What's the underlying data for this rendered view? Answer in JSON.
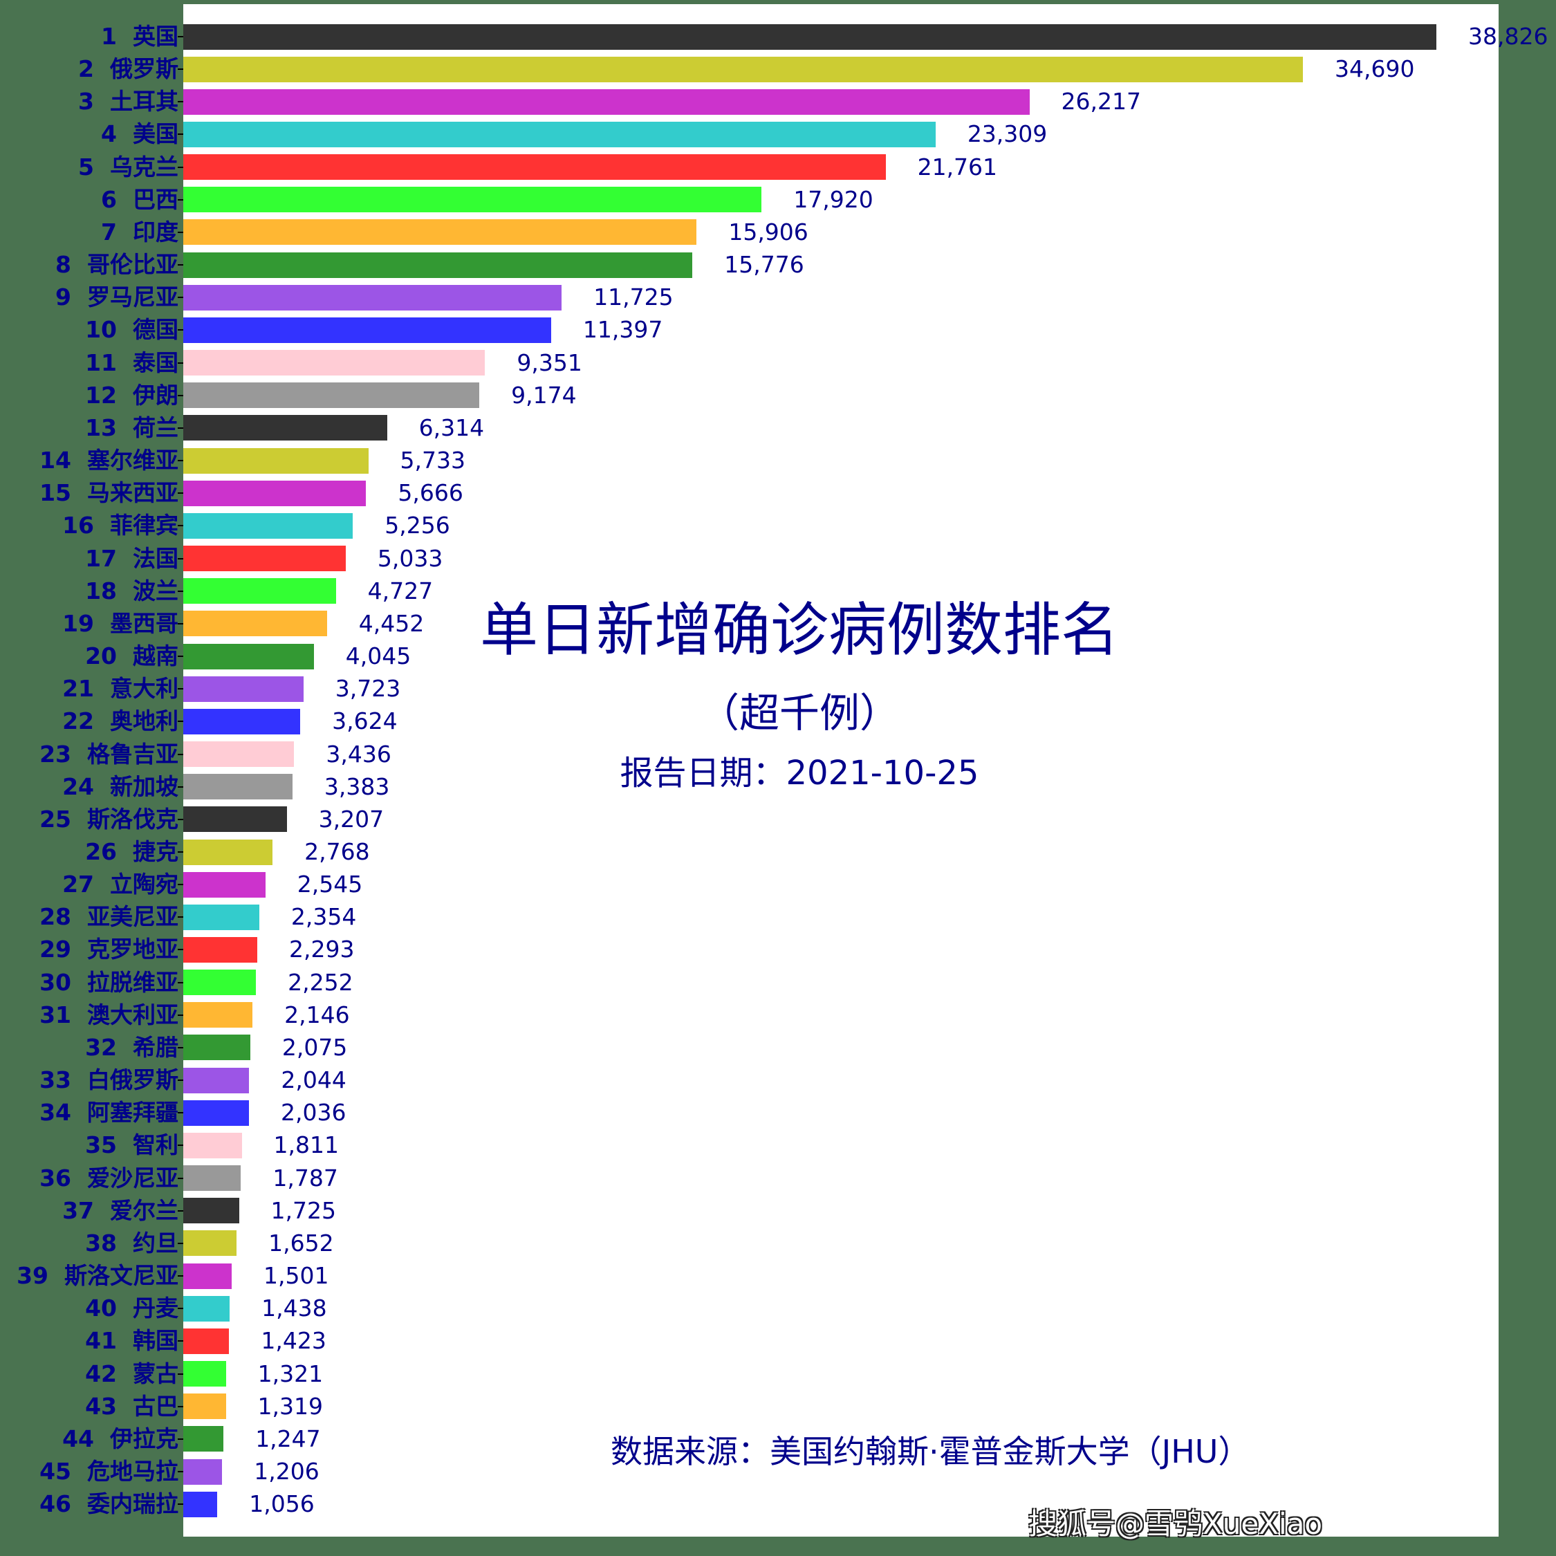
{
  "chart_data": {
    "type": "bar",
    "orientation": "horizontal",
    "title": "单日新增确诊病例数排名",
    "subtitle": "（超千例）",
    "report_date_label": "报告日期：2021-10-25",
    "source": "数据来源：美国约翰斯·霍普金斯大学（JHU）",
    "xlabel": "",
    "ylabel": "",
    "xlim": [
      0,
      40800
    ],
    "grid": false,
    "legend": null,
    "categories": [
      "1 英国",
      "2 俄罗斯",
      "3 土耳其",
      "4 美国",
      "5 乌克兰",
      "6 巴西",
      "7 印度",
      "8 哥伦比亚",
      "9 罗马尼亚",
      "10 德国",
      "11 泰国",
      "12 伊朗",
      "13 荷兰",
      "14 塞尔维亚",
      "15 马来西亚",
      "16 菲律宾",
      "17 法国",
      "18 波兰",
      "19 墨西哥",
      "20 越南",
      "21 意大利",
      "22 奥地利",
      "23 格鲁吉亚",
      "24 新加坡",
      "25 斯洛伐克",
      "26 捷克",
      "27 立陶宛",
      "28 亚美尼亚",
      "29 克罗地亚",
      "30 拉脱维亚",
      "31 澳大利亚",
      "32 希腊",
      "33 白俄罗斯",
      "34 阿塞拜疆",
      "35 智利",
      "36 爱沙尼亚",
      "37 爱尔兰",
      "38 约旦",
      "39 斯洛文尼亚",
      "40 丹麦",
      "41 韩国",
      "42 蒙古",
      "43 古巴",
      "44 伊拉克",
      "45 危地马拉",
      "46 委内瑞拉"
    ],
    "values": [
      38826,
      34690,
      26217,
      23309,
      21761,
      17920,
      15906,
      15776,
      11725,
      11397,
      9351,
      9174,
      6314,
      5733,
      5666,
      5256,
      5033,
      4727,
      4452,
      4045,
      3723,
      3624,
      3436,
      3383,
      3207,
      2768,
      2545,
      2354,
      2293,
      2252,
      2146,
      2075,
      2044,
      2036,
      1811,
      1787,
      1725,
      1652,
      1501,
      1438,
      1423,
      1321,
      1319,
      1247,
      1206,
      1056
    ],
    "value_labels": [
      "38,826",
      "34,690",
      "26,217",
      "23,309",
      "21,761",
      "17,920",
      "15,906",
      "15,776",
      "11,725",
      "11,397",
      "9,351",
      "9,174",
      "6,314",
      "5,733",
      "5,666",
      "5,256",
      "5,033",
      "4,727",
      "4,452",
      "4,045",
      "3,723",
      "3,624",
      "3,436",
      "3,383",
      "3,207",
      "2,768",
      "2,545",
      "2,354",
      "2,293",
      "2,252",
      "2,146",
      "2,075",
      "2,044",
      "2,036",
      "1,811",
      "1,787",
      "1,725",
      "1,652",
      "1,501",
      "1,438",
      "1,423",
      "1,321",
      "1,319",
      "1,247",
      "1,206",
      "1,056"
    ],
    "colors_cycle": [
      "#333333",
      "#cccc33",
      "#cc33cc",
      "#33cccc",
      "#ff3333",
      "#33ff33",
      "#ffb733",
      "#339933",
      "#9c55e6",
      "#3333ff",
      "#ffccd5",
      "#999999"
    ]
  },
  "header": {
    "title": "单日新增确诊病例数排名",
    "subtitle": "（超千例）",
    "date": "报告日期：2021-10-25"
  },
  "footer": {
    "source": "数据来源：美国约翰斯·霍普金斯大学（JHU）",
    "watermark": "搜狐号@雪鸮XueXiao"
  },
  "colors": {
    "background": "#4a7350",
    "plot_bg": "#ffffff",
    "text": "#00008b"
  }
}
